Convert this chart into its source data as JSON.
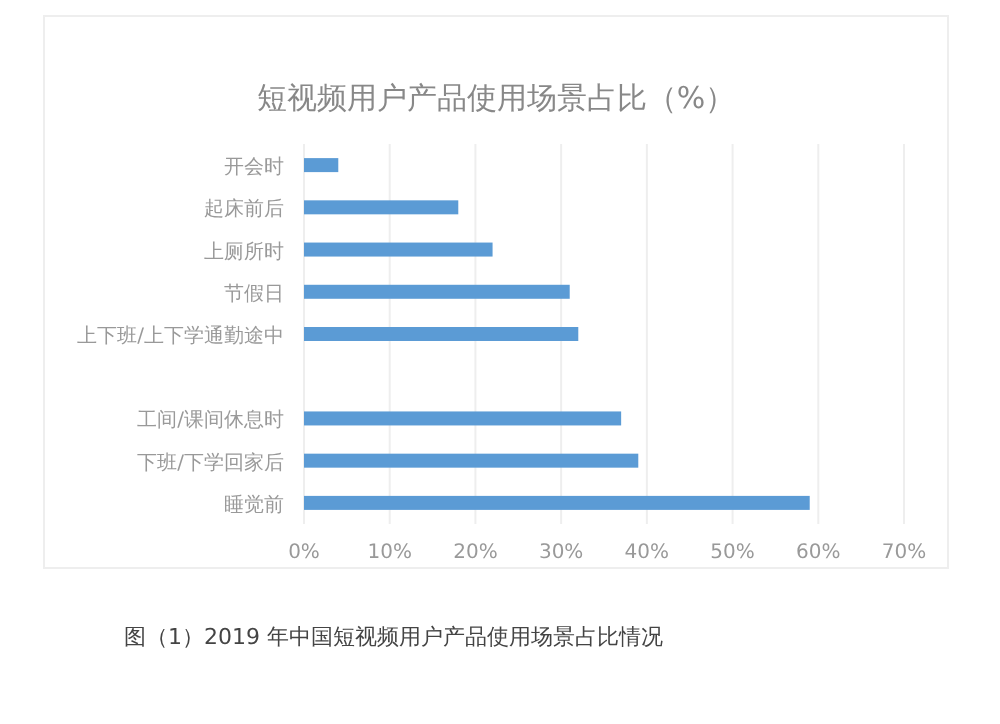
{
  "chart_data": {
    "type": "bar",
    "orientation": "horizontal",
    "title": "短视频用户产品使用场景占比（%）",
    "categories": [
      "开会时",
      "起床前后",
      "上厕所时",
      "节假日",
      "上下班/上下学通勤途中",
      null,
      "工间/课间休息时",
      "下班/下学回家后",
      "睡觉前"
    ],
    "values": [
      4,
      18,
      22,
      31,
      32,
      null,
      37,
      39,
      59
    ],
    "color": "#5b9bd5",
    "xlim": [
      0,
      70
    ],
    "xticks": [
      {
        "value": 0,
        "label": "0%"
      },
      {
        "value": 10,
        "label": "10%"
      },
      {
        "value": 20,
        "label": "20%"
      },
      {
        "value": 30,
        "label": "30%"
      },
      {
        "value": 40,
        "label": "40%"
      },
      {
        "value": 50,
        "label": "50%"
      },
      {
        "value": 60,
        "label": "60%"
      },
      {
        "value": 70,
        "label": "70%"
      }
    ],
    "grid": "x",
    "annotations": [
      "图（1）2019 年中国短视频用户产品使用场景占比情况"
    ]
  }
}
